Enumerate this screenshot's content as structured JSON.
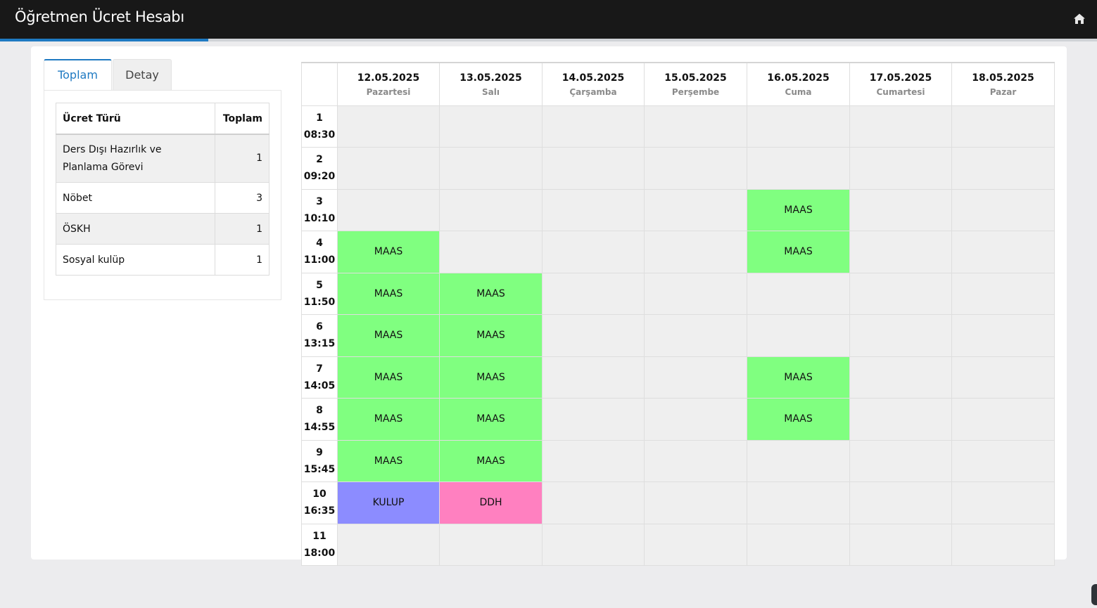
{
  "header": {
    "title": "Öğretmen Ücret Hesabı",
    "home_icon": "home-icon"
  },
  "progress": {
    "fraction": 0.19
  },
  "tabs": [
    {
      "label": "Toplam",
      "active": true
    },
    {
      "label": "Detay",
      "active": false
    }
  ],
  "summary": {
    "headers": {
      "type": "Ücret Türü",
      "total": "Toplam"
    },
    "rows": [
      {
        "type": "Ders Dışı Hazırlık ve Planlama Görevi",
        "total": "1"
      },
      {
        "type": "Nöbet",
        "total": "3"
      },
      {
        "type": "ÖSKH",
        "total": "1"
      },
      {
        "type": "Sosyal kulüp",
        "total": "1"
      }
    ]
  },
  "schedule": {
    "days": [
      {
        "date": "12.05.2025",
        "day": "Pazartesi"
      },
      {
        "date": "13.05.2025",
        "day": "Salı"
      },
      {
        "date": "14.05.2025",
        "day": "Çarşamba"
      },
      {
        "date": "15.05.2025",
        "day": "Perşembe"
      },
      {
        "date": "16.05.2025",
        "day": "Cuma"
      },
      {
        "date": "17.05.2025",
        "day": "Cumartesi"
      },
      {
        "date": "18.05.2025",
        "day": "Pazar"
      }
    ],
    "slots": [
      {
        "no": "1",
        "time": "08:30",
        "cells": [
          "",
          "",
          "",
          "",
          "",
          "",
          ""
        ]
      },
      {
        "no": "2",
        "time": "09:20",
        "cells": [
          "",
          "",
          "",
          "",
          "",
          "",
          ""
        ]
      },
      {
        "no": "3",
        "time": "10:10",
        "cells": [
          "",
          "",
          "",
          "",
          "MAAS",
          "",
          ""
        ]
      },
      {
        "no": "4",
        "time": "11:00",
        "cells": [
          "MAAS",
          "",
          "",
          "",
          "MAAS",
          "",
          ""
        ]
      },
      {
        "no": "5",
        "time": "11:50",
        "cells": [
          "MAAS",
          "MAAS",
          "",
          "",
          "",
          "",
          ""
        ]
      },
      {
        "no": "6",
        "time": "13:15",
        "cells": [
          "MAAS",
          "MAAS",
          "",
          "",
          "",
          "",
          ""
        ]
      },
      {
        "no": "7",
        "time": "14:05",
        "cells": [
          "MAAS",
          "MAAS",
          "",
          "",
          "MAAS",
          "",
          ""
        ]
      },
      {
        "no": "8",
        "time": "14:55",
        "cells": [
          "MAAS",
          "MAAS",
          "",
          "",
          "MAAS",
          "",
          ""
        ]
      },
      {
        "no": "9",
        "time": "15:45",
        "cells": [
          "MAAS",
          "MAAS",
          "",
          "",
          "",
          "",
          ""
        ]
      },
      {
        "no": "10",
        "time": "16:35",
        "cells": [
          "KULUP",
          "DDH",
          "",
          "",
          "",
          "",
          ""
        ]
      },
      {
        "no": "11",
        "time": "18:00",
        "cells": [
          "",
          "",
          "",
          "",
          "",
          "",
          ""
        ]
      }
    ],
    "colors": {
      "MAAS": "#80ff80",
      "KULUP": "#8c8cff",
      "DDH": "#ff80c0",
      "empty": "#efefef"
    }
  }
}
